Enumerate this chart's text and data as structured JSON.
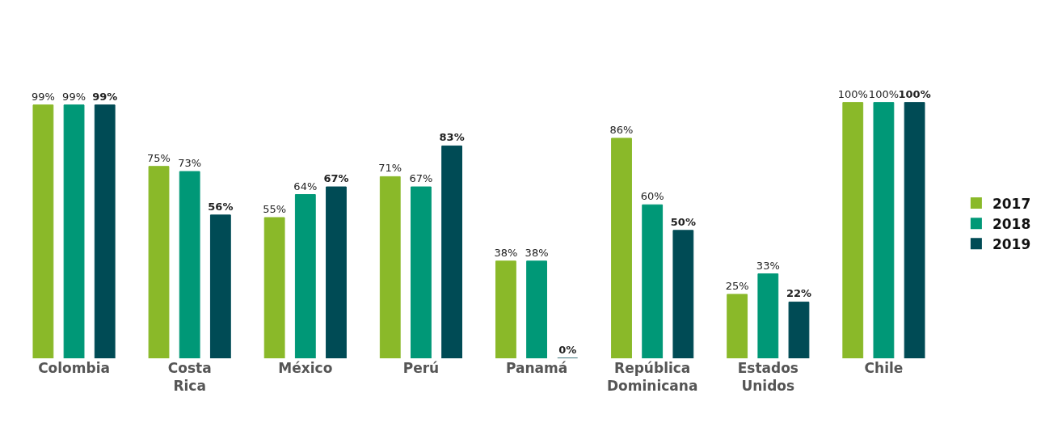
{
  "chart_data": {
    "type": "bar",
    "categories": [
      "Colombia",
      "Costa Rica",
      "México",
      "Perú",
      "Panamá",
      "República Dominicana",
      "Estados Unidos",
      "Chile"
    ],
    "series": [
      {
        "name": "2017",
        "color": "#8ab929",
        "values": [
          99,
          75,
          55,
          71,
          38,
          86,
          25,
          100
        ],
        "value_labels": [
          "99%",
          "75%",
          "55%",
          "71%",
          "38%",
          "86%",
          "25%",
          "100%"
        ]
      },
      {
        "name": "2018",
        "color": "#009877",
        "values": [
          99,
          73,
          64,
          67,
          38,
          60,
          33,
          100
        ],
        "value_labels": [
          "99%",
          "73%",
          "64%",
          "67%",
          "38%",
          "60%",
          "33%",
          "100%"
        ]
      },
      {
        "name": "2019",
        "color": "#004b55",
        "values": [
          99,
          56,
          67,
          83,
          0,
          50,
          22,
          100
        ],
        "value_labels": [
          "99%",
          "56%",
          "67%",
          "83%",
          "0%",
          "50%",
          "22%",
          "100%"
        ]
      }
    ],
    "tick_labels": "x",
    "legend": "right"
  }
}
